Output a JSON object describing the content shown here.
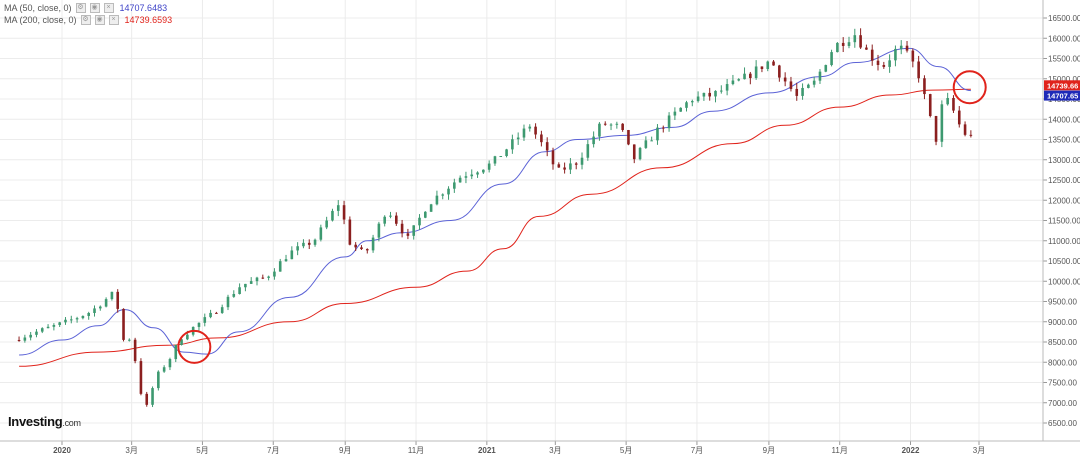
{
  "legend": {
    "ma50": {
      "label": "MA (50, close, 0)",
      "value": "14707.6483",
      "color": "#3f44c8"
    },
    "ma200": {
      "label": "MA (200, close, 0)",
      "value": "14739.6593",
      "color": "#e0231b"
    }
  },
  "logo": {
    "brand": "Investing",
    "suffix": ".com"
  },
  "colors": {
    "up": "#3d9970",
    "down": "#8b1f1f",
    "ma50": "#5b62d6",
    "ma200": "#e0231b",
    "circle": "#e0231b",
    "grid": "#ececec",
    "axis_text": "#555555"
  },
  "chart_data": {
    "type": "candlestick",
    "x_ticks": [
      "2020",
      "3月",
      "5月",
      "7月",
      "9月",
      "11月",
      "2021",
      "3月",
      "5月",
      "7月",
      "9月",
      "11月",
      "2022",
      "3月"
    ],
    "x_tick_dates": [
      "2020-01",
      "2020-03",
      "2020-05",
      "2020-07",
      "2020-09",
      "2020-11",
      "2021-01",
      "2021-03",
      "2021-05",
      "2021-07",
      "2021-09",
      "2021-11",
      "2022-01",
      "2022-03"
    ],
    "y_ticks": [
      "16500.00",
      "16000.00",
      "15500.00",
      "15000.00",
      "14500.00",
      "14000.00",
      "13500.00",
      "13000.00",
      "12500.00",
      "12000.00",
      "11500.00",
      "11000.00",
      "10500.00",
      "10000.00",
      "9500.00",
      "9000.00",
      "8500.00",
      "8000.00",
      "7500.00",
      "7000.00",
      "6500.00"
    ],
    "ylim": [
      6200,
      16750
    ],
    "price_path": [
      [
        "2019-11-25",
        8550
      ],
      [
        "2019-12-15",
        8750
      ],
      [
        "2020-01-10",
        9000
      ],
      [
        "2020-01-31",
        9250
      ],
      [
        "2020-02-19",
        9700
      ],
      [
        "2020-02-24",
        9250
      ],
      [
        "2020-02-28",
        8550
      ],
      [
        "2020-03-06",
        8600
      ],
      [
        "2020-03-12",
        7500
      ],
      [
        "2020-03-16",
        7000
      ],
      [
        "2020-03-20",
        6880
      ],
      [
        "2020-03-26",
        7600
      ],
      [
        "2020-04-08",
        8100
      ],
      [
        "2020-04-17",
        8600
      ],
      [
        "2020-04-30",
        8900
      ],
      [
        "2020-05-15",
        9200
      ],
      [
        "2020-06-08",
        9900
      ],
      [
        "2020-06-30",
        10100
      ],
      [
        "2020-07-20",
        10700
      ],
      [
        "2020-08-10",
        11000
      ],
      [
        "2020-09-02",
        12000
      ],
      [
        "2020-09-08",
        11000
      ],
      [
        "2020-09-23",
        10650
      ],
      [
        "2020-10-12",
        11800
      ],
      [
        "2020-10-30",
        11050
      ],
      [
        "2020-11-16",
        11900
      ],
      [
        "2020-12-15",
        12600
      ],
      [
        "2021-01-10",
        12900
      ],
      [
        "2021-02-12",
        13850
      ],
      [
        "2021-02-22",
        13400
      ],
      [
        "2021-03-08",
        12700
      ],
      [
        "2021-03-25",
        12950
      ],
      [
        "2021-04-15",
        13900
      ],
      [
        "2021-05-01",
        13800
      ],
      [
        "2021-05-12",
        13000
      ],
      [
        "2021-06-01",
        13700
      ],
      [
        "2021-07-01",
        14500
      ],
      [
        "2021-07-20",
        14600
      ],
      [
        "2021-08-15",
        15000
      ],
      [
        "2021-09-07",
        15450
      ],
      [
        "2021-09-30",
        14550
      ],
      [
        "2021-10-15",
        14900
      ],
      [
        "2021-11-01",
        15800
      ],
      [
        "2021-11-19",
        16100
      ],
      [
        "2021-12-01",
        15600
      ],
      [
        "2021-12-13",
        15300
      ],
      [
        "2021-12-27",
        15800
      ],
      [
        "2022-01-04",
        15550
      ],
      [
        "2022-01-12",
        15200
      ],
      [
        "2022-01-24",
        13900
      ],
      [
        "2022-01-27",
        13350
      ],
      [
        "2022-02-02",
        14300
      ],
      [
        "2022-02-09",
        14500
      ],
      [
        "2022-02-14",
        14000
      ],
      [
        "2022-02-24",
        13550
      ]
    ],
    "series": [
      {
        "name": "MA (50, close, 0)",
        "color": "#5b62d6",
        "points": [
          [
            "2019-11-25",
            8180
          ],
          [
            "2020-01-01",
            8550
          ],
          [
            "2020-02-01",
            8900
          ],
          [
            "2020-02-24",
            9300
          ],
          [
            "2020-03-20",
            8850
          ],
          [
            "2020-04-15",
            8250
          ],
          [
            "2020-05-05",
            8200
          ],
          [
            "2020-06-01",
            8750
          ],
          [
            "2020-07-15",
            9600
          ],
          [
            "2020-09-01",
            10600
          ],
          [
            "2020-09-20",
            11000
          ],
          [
            "2020-10-20",
            11200
          ],
          [
            "2020-12-01",
            11500
          ],
          [
            "2021-01-15",
            12400
          ],
          [
            "2021-02-20",
            13200
          ],
          [
            "2021-03-20",
            13500
          ],
          [
            "2021-05-01",
            13600
          ],
          [
            "2021-06-10",
            13800
          ],
          [
            "2021-07-15",
            14200
          ],
          [
            "2021-09-01",
            14650
          ],
          [
            "2021-10-15",
            15050
          ],
          [
            "2021-11-15",
            15400
          ],
          [
            "2021-12-31",
            15750
          ],
          [
            "2022-01-25",
            15300
          ],
          [
            "2022-02-22",
            14708
          ]
        ]
      },
      {
        "name": "MA (200, close, 0)",
        "color": "#e0231b",
        "points": [
          [
            "2019-11-25",
            7900
          ],
          [
            "2020-02-01",
            8250
          ],
          [
            "2020-04-01",
            8420
          ],
          [
            "2020-05-15",
            8600
          ],
          [
            "2020-07-15",
            9000
          ],
          [
            "2020-09-01",
            9450
          ],
          [
            "2020-11-01",
            9850
          ],
          [
            "2020-12-15",
            10250
          ],
          [
            "2021-01-15",
            10800
          ],
          [
            "2021-02-15",
            11600
          ],
          [
            "2021-04-01",
            12150
          ],
          [
            "2021-06-01",
            12800
          ],
          [
            "2021-08-01",
            13400
          ],
          [
            "2021-09-15",
            13850
          ],
          [
            "2021-11-01",
            14300
          ],
          [
            "2021-12-15",
            14600
          ],
          [
            "2022-01-20",
            14720
          ],
          [
            "2022-02-22",
            14740
          ]
        ]
      }
    ],
    "price_tags": [
      {
        "value": "14739.66",
        "y": 14739.66,
        "color": "#e0231b"
      },
      {
        "value": "14707.65",
        "y": 14707.65,
        "color": "#1e2ab8"
      }
    ],
    "annotations": [
      {
        "shape": "circle",
        "date": "2020-04-24",
        "value": 8380
      },
      {
        "shape": "circle",
        "date": "2022-02-21",
        "value": 14790
      }
    ],
    "grid": true
  }
}
